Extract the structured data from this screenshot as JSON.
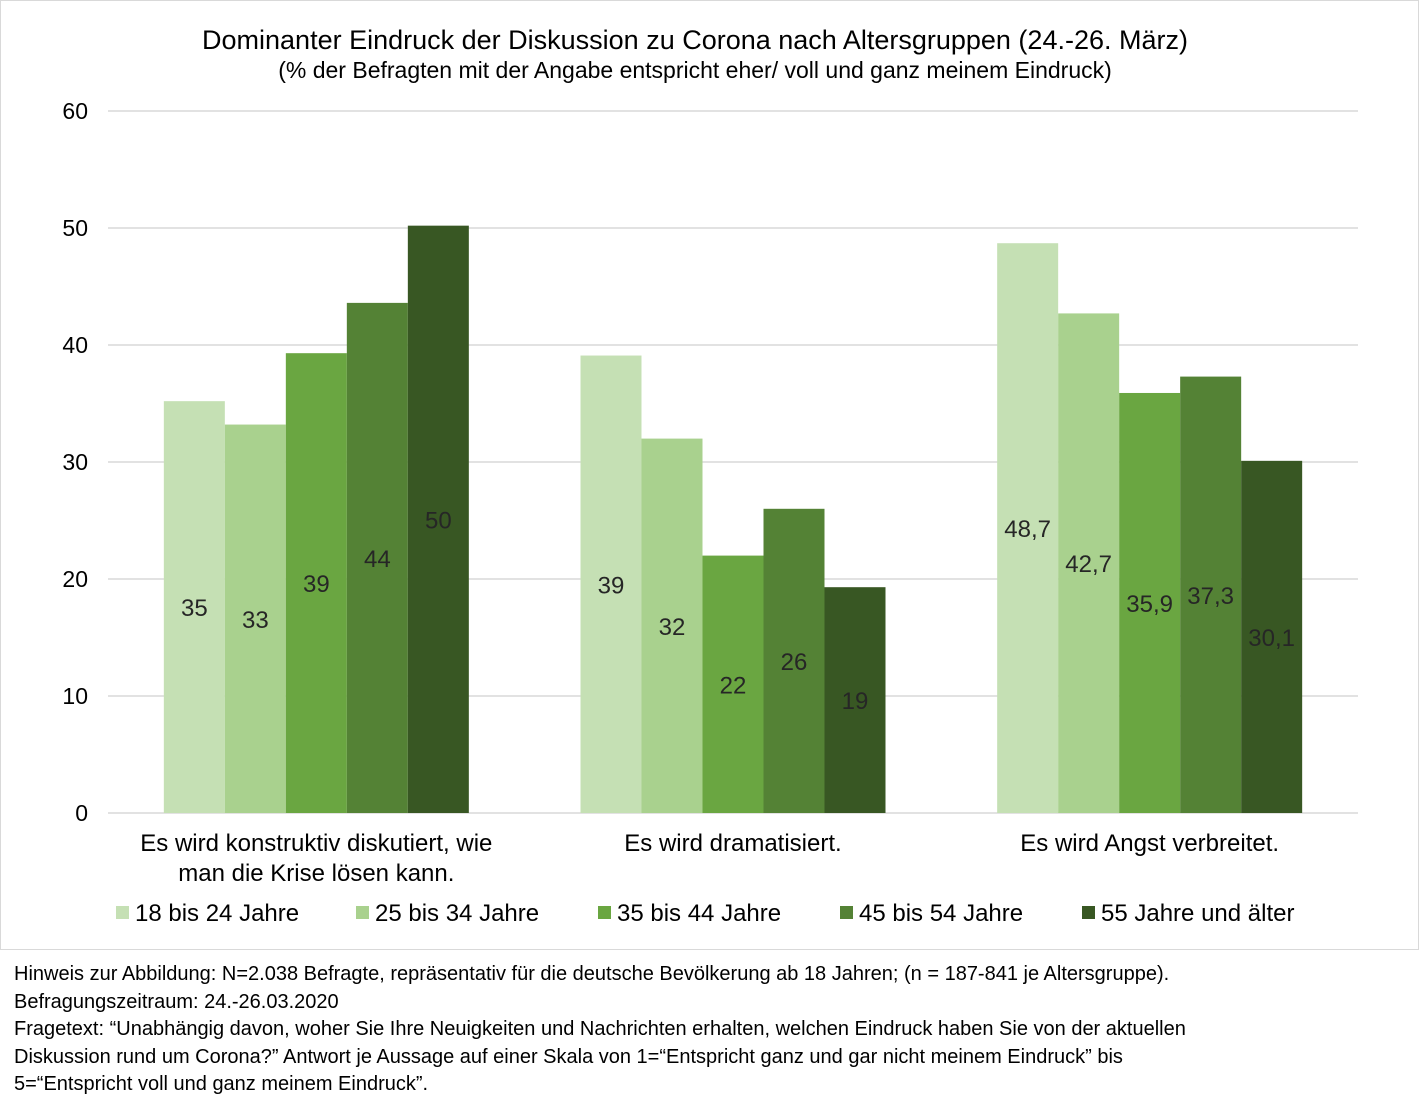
{
  "chart_data": {
    "type": "bar",
    "title": "Dominanter Eindruck der Diskussion zu Corona nach Altersgruppen (24.-26. März)",
    "subtitle": "(% der Befragten mit der Angabe entspricht eher/ voll und ganz meinem Eindruck)",
    "categories": [
      [
        "Es wird konstruktiv diskutiert, wie",
        "man die Krise lösen kann."
      ],
      [
        "Es wird dramatisiert."
      ],
      [
        "Es wird Angst verbreitet."
      ]
    ],
    "series": [
      {
        "name": "18 bis 24 Jahre",
        "color": "#c5e0b4",
        "values": [
          35.2,
          39.1,
          48.7
        ],
        "labels": [
          "35",
          "39",
          "48,7"
        ]
      },
      {
        "name": "25 bis 34 Jahre",
        "color": "#a9d18e",
        "values": [
          33.2,
          32.0,
          42.7
        ],
        "labels": [
          "33",
          "32",
          "42,7"
        ]
      },
      {
        "name": "35 bis 44 Jahre",
        "color": "#6aa641",
        "values": [
          39.3,
          22.0,
          35.9
        ],
        "labels": [
          "39",
          "22",
          "35,9"
        ]
      },
      {
        "name": "45 bis 54 Jahre",
        "color": "#548235",
        "values": [
          43.6,
          26.0,
          37.3
        ],
        "labels": [
          "44",
          "26",
          "37,3"
        ]
      },
      {
        "name": "55 Jahre und älter",
        "color": "#385723",
        "values": [
          50.2,
          19.3,
          30.1
        ],
        "labels": [
          "50",
          "19",
          "30,1"
        ]
      }
    ],
    "ylim": [
      0,
      60
    ],
    "yticks": [
      0,
      10,
      20,
      30,
      40,
      50,
      60
    ],
    "grid": true,
    "legend": "bottom"
  },
  "notes": [
    "Hinweis zur Abbildung: N=2.038 Befragte, repräsentativ für die deutsche Bevölkerung ab 18 Jahren; (n = 187-841 je Altersgruppe).",
    "Befragungszeitraum: 24.-26.03.2020",
    "Fragetext: “Unabhängig davon, woher Sie Ihre Neuigkeiten und Nachrichten erhalten, welchen Eindruck haben Sie von der aktuellen",
    "Diskussion rund um Corona?” Antwort je Aussage auf einer Skala von 1=“Entspricht ganz und gar nicht meinem Eindruck” bis",
    "5=“Entspricht voll und ganz meinem Eindruck”."
  ]
}
